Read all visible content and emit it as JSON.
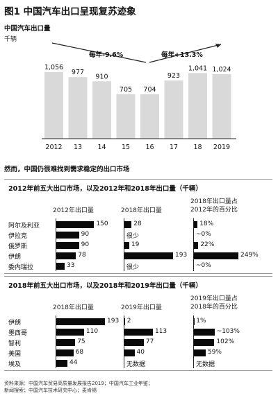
{
  "figure": {
    "title": "图1 中国汽车出口呈现复苏迹象"
  },
  "chart_data": [
    {
      "type": "bar",
      "title": "中国汽车出口量",
      "unit": "千辆",
      "categories": [
        "2012",
        "13",
        "14",
        "15",
        "16",
        "17",
        "18",
        "2019"
      ],
      "values": [
        1056,
        977,
        910,
        705,
        704,
        923,
        1041,
        1024
      ],
      "ylim": [
        0,
        1100
      ],
      "annotations": [
        "每年-9.6%",
        "每年+13.3%"
      ],
      "grid": false,
      "colors": {
        "bar": "#d9d9d9",
        "text": "#111111"
      }
    },
    {
      "type": "bar",
      "title": "2012年前五大出口市场，以及2012年和2018年出口量（千辆）",
      "categories": [
        "阿尔及利亚",
        "伊拉克",
        "俄罗斯",
        "伊朗",
        "委内瑞拉"
      ],
      "columns": [
        "2012年出口量",
        "2018年出口量",
        "2018年出口量占2012年的百分比"
      ],
      "series": [
        {
          "name": "2012年出口量",
          "values": [
            150,
            90,
            90,
            78,
            33
          ]
        },
        {
          "name": "2018年出口量",
          "values": [
            28,
            null,
            19,
            193,
            null
          ],
          "labels": [
            "28",
            "很少",
            "19",
            "193",
            "很少"
          ]
        },
        {
          "name": "2018年出口量占2012年的百分比",
          "values": [
            18,
            0,
            22,
            249,
            0
          ],
          "labels": [
            "18%",
            "~0%",
            "22%",
            "249%",
            "~0%"
          ]
        }
      ]
    },
    {
      "type": "bar",
      "title": "2018年前五大出口市场，以及2018年和2019年出口量（千辆）",
      "categories": [
        "伊朗",
        "墨西哥",
        "智利",
        "美国",
        "埃及"
      ],
      "columns": [
        "2018年出口量",
        "2019年出口量",
        "2019年出口量占2018年的百分比"
      ],
      "series": [
        {
          "name": "2018年出口量",
          "values": [
            193,
            110,
            75,
            68,
            44
          ]
        },
        {
          "name": "2019年出口量",
          "values": [
            2,
            113,
            77,
            40,
            null
          ],
          "labels": [
            "2",
            "113",
            "77",
            "40",
            "无数据"
          ]
        },
        {
          "name": "2019年出口量占2018年的百分比",
          "values": [
            1,
            103,
            102,
            59,
            null
          ],
          "labels": [
            "1%",
            "~103%",
            "102%",
            "59%",
            "无数据"
          ]
        }
      ]
    }
  ],
  "lead_text": "然而，中国仍很难找到需求稳定的出口市场",
  "panel1": {
    "col1": "2012年出口量",
    "col2": "2018年出口量",
    "col3_line1": "2018年出口量占",
    "col3_line2": "2012年的百分比"
  },
  "panel2": {
    "col1": "2018年出口量",
    "col2": "2019年出口量",
    "col3_line1": "2019年出口量占",
    "col3_line2": "2018年的百分比"
  },
  "footer": {
    "line1": "资料来源：中国汽车贸易高质量发展报告2019；中国汽车工业年鉴；",
    "line2": "新闻搜索；中国汽车技术研究中心；麦肯锡"
  }
}
